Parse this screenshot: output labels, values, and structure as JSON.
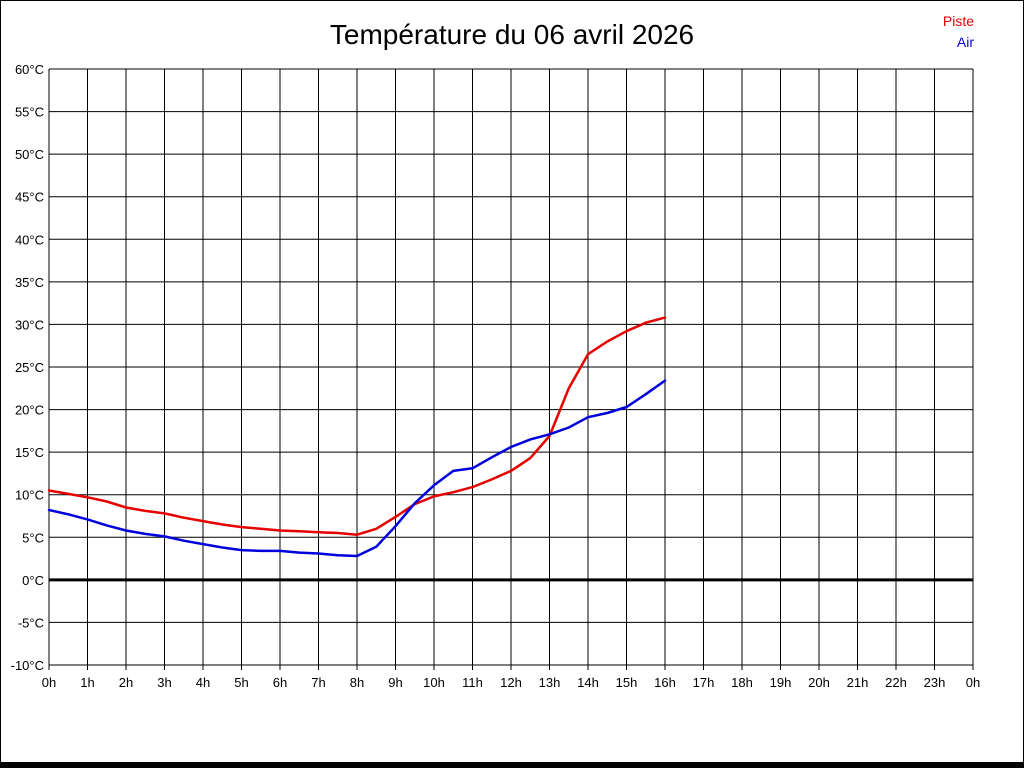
{
  "title": "Température du 06 avril 2026",
  "legend": {
    "items": [
      {
        "label": "Piste",
        "color": "#e60000"
      },
      {
        "label": "Air",
        "color": "#0000dd"
      }
    ],
    "position": "top-right"
  },
  "colors": {
    "piste_line": "#e60000",
    "air_line": "#0000dd",
    "grid": "#000000",
    "zero_line": "#000000",
    "text": "#000000",
    "background": "#ffffff"
  },
  "chart_data": {
    "type": "line",
    "title": "Température du 06 avril 2026",
    "xlabel": "",
    "ylabel": "",
    "xlim": [
      0,
      24
    ],
    "ylim": [
      -10,
      60
    ],
    "y_tick_step": 5,
    "grid": true,
    "zero_line_at": 0,
    "legend_position": "top-right",
    "x_tick_labels": [
      "0h",
      "1h",
      "2h",
      "3h",
      "4h",
      "5h",
      "6h",
      "7h",
      "8h",
      "9h",
      "10h",
      "11h",
      "12h",
      "13h",
      "14h",
      "15h",
      "16h",
      "17h",
      "18h",
      "19h",
      "20h",
      "21h",
      "22h",
      "23h",
      "0h"
    ],
    "y_tick_labels": [
      "60°C",
      "55°C",
      "50°C",
      "45°C",
      "40°C",
      "35°C",
      "30°C",
      "25°C",
      "20°C",
      "15°C",
      "10°C",
      "5°C",
      "0°C",
      "-5°C",
      "-10°C"
    ],
    "x": [
      0,
      0.5,
      1,
      1.5,
      2,
      2.5,
      3,
      3.5,
      4,
      4.5,
      5,
      5.5,
      6,
      6.5,
      7,
      7.5,
      8,
      8.5,
      9,
      9.5,
      10,
      10.5,
      11,
      11.5,
      12,
      12.5,
      13,
      13.5,
      14,
      14.5,
      15,
      15.5,
      16
    ],
    "series": [
      {
        "name": "Piste",
        "color": "#e60000",
        "values": [
          10.5,
          10.1,
          9.7,
          9.2,
          8.5,
          8.1,
          7.8,
          7.3,
          6.9,
          6.5,
          6.2,
          6.0,
          5.8,
          5.7,
          5.6,
          5.5,
          5.3,
          6.0,
          7.4,
          8.9,
          9.8,
          10.3,
          10.9,
          11.8,
          12.8,
          14.3,
          16.9,
          22.5,
          26.5,
          28.0,
          29.2,
          30.2,
          30.8
        ]
      },
      {
        "name": "Air",
        "color": "#0000dd",
        "values": [
          8.2,
          7.7,
          7.1,
          6.4,
          5.8,
          5.4,
          5.1,
          4.6,
          4.2,
          3.8,
          3.5,
          3.4,
          3.4,
          3.2,
          3.1,
          2.9,
          2.8,
          3.9,
          6.3,
          9.0,
          11.1,
          12.8,
          13.1,
          14.4,
          15.6,
          16.5,
          17.1,
          17.9,
          19.1,
          19.6,
          20.3,
          21.8,
          23.4
        ]
      }
    ]
  }
}
